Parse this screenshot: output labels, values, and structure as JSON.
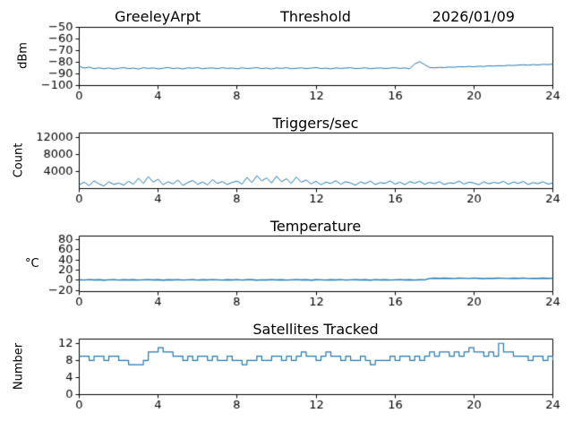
{
  "colors": {
    "line": "#1f77b4",
    "axes": "#000000",
    "background": "#ffffff"
  },
  "chart_data": [
    {
      "type": "line",
      "title_left": "GreeleyArpt",
      "title_center": "Threshold",
      "title_right": "2026/01/09",
      "xlabel": "",
      "ylabel": "dBm",
      "xlim": [
        0,
        24
      ],
      "ylim": [
        -100,
        -50
      ],
      "xticks": [
        0,
        4,
        8,
        12,
        16,
        20,
        24
      ],
      "yticks": [
        -100,
        -90,
        -80,
        -70,
        -60,
        -50
      ],
      "grid": false,
      "legend": false,
      "line_width": 1,
      "step": false,
      "x_start": 0,
      "x_step": 0.25,
      "values": [
        -83.5,
        -85.0,
        -84.2,
        -85.5,
        -84.8,
        -85.6,
        -84.9,
        -85.8,
        -85.2,
        -84.6,
        -85.5,
        -85.0,
        -85.9,
        -84.7,
        -85.3,
        -84.9,
        -85.7,
        -85.1,
        -84.5,
        -85.4,
        -85.0,
        -85.8,
        -84.8,
        -85.2,
        -84.6,
        -85.6,
        -85.1,
        -84.9,
        -85.5,
        -84.7,
        -85.3,
        -85.0,
        -85.7,
        -84.8,
        -85.4,
        -85.1,
        -84.6,
        -85.5,
        -85.0,
        -85.8,
        -84.9,
        -85.3,
        -84.7,
        -85.6,
        -85.2,
        -84.8,
        -85.5,
        -85.0,
        -84.6,
        -85.4,
        -85.1,
        -85.7,
        -84.9,
        -85.3,
        -85.0,
        -84.7,
        -85.5,
        -85.2,
        -84.8,
        -85.6,
        -85.1,
        -84.9,
        -85.4,
        -85.0,
        -84.7,
        -85.3,
        -84.9,
        -85.5,
        -81.5,
        -79.5,
        -82.0,
        -84.5,
        -84.8,
        -84.4,
        -84.6,
        -84.1,
        -84.3,
        -83.8,
        -84.0,
        -83.6,
        -83.9,
        -83.4,
        -83.6,
        -83.1,
        -83.3,
        -82.9,
        -83.1,
        -82.6,
        -82.8,
        -82.4,
        -82.2,
        -82.5,
        -82.0,
        -82.3,
        -81.8,
        -82.0,
        -81.6
      ]
    },
    {
      "type": "line",
      "title": "Triggers/sec",
      "xlabel": "",
      "ylabel": "Count",
      "xlim": [
        0,
        24
      ],
      "ylim": [
        0,
        13000
      ],
      "xticks": [
        0,
        4,
        8,
        12,
        16,
        20,
        24
      ],
      "yticks": [
        4000,
        8000,
        12000
      ],
      "grid": false,
      "legend": false,
      "line_width": 1,
      "step": false,
      "x_start": 0,
      "x_step": 0.25,
      "values": [
        900,
        1500,
        700,
        1800,
        1100,
        600,
        1600,
        950,
        1300,
        800,
        1700,
        1000,
        2400,
        1200,
        2800,
        1500,
        2200,
        900,
        1600,
        1100,
        2000,
        750,
        1400,
        1900,
        1000,
        1550,
        850,
        2100,
        1200,
        1650,
        950,
        1450,
        1750,
        1050,
        2600,
        1400,
        3000,
        1800,
        2500,
        1300,
        2900,
        1600,
        2300,
        1200,
        2700,
        1500,
        2000,
        1100,
        1700,
        900,
        1500,
        1200,
        1850,
        1000,
        1600,
        1300,
        800,
        1550,
        1150,
        1750,
        950,
        1400,
        1200,
        1800,
        1050,
        1500,
        900,
        1650,
        1250,
        1700,
        1000,
        1450,
        1150,
        1600,
        950,
        1350,
        1200,
        1750,
        1050,
        1500,
        1300,
        900,
        1600,
        1100,
        1450,
        1250,
        1700,
        1000,
        1550,
        1200,
        1650,
        950,
        1400,
        1150,
        1600,
        1050,
        1300
      ]
    },
    {
      "type": "line",
      "title": "Temperature",
      "xlabel": "",
      "ylabel": "°C",
      "xlim": [
        0,
        24
      ],
      "ylim": [
        -22,
        87
      ],
      "xticks": [
        0,
        4,
        8,
        12,
        16,
        20,
        24
      ],
      "yticks": [
        -20,
        0,
        20,
        40,
        60,
        80
      ],
      "grid": false,
      "legend": false,
      "line_width": 1.4,
      "step": false,
      "x_start": 0,
      "x_step": 0.25,
      "values": [
        1.2,
        0.6,
        1.5,
        0.8,
        1.3,
        0.5,
        1.1,
        1.6,
        0.7,
        1.2,
        0.9,
        1.4,
        0.6,
        1.0,
        1.5,
        0.8,
        1.2,
        0.5,
        1.3,
        0.9,
        1.6,
        0.7,
        1.1,
        1.4,
        0.6,
        1.2,
        0.8,
        1.5,
        1.0,
        0.6,
        1.3,
        0.9,
        1.6,
        0.7,
        1.2,
        1.4,
        0.5,
        1.1,
        0.8,
        1.5,
        0.9,
        1.3,
        0.6,
        1.0,
        1.6,
        0.8,
        1.2,
        0.5,
        1.4,
        1.0,
        0.7,
        1.3,
        0.9,
        1.5,
        0.6,
        1.1,
        1.4,
        0.8,
        1.2,
        0.5,
        1.6,
        0.9,
        1.3,
        0.7,
        1.0,
        1.5,
        0.8,
        1.2,
        0.6,
        1.4,
        1.0,
        3.8,
        4.3,
        3.9,
        4.5,
        4.0,
        3.7,
        4.4,
        4.1,
        3.8,
        4.6,
        4.0,
        3.6,
        4.2,
        3.9,
        4.5,
        4.1,
        3.7,
        4.3,
        4.0,
        4.6,
        3.8,
        4.2,
        3.9,
        4.4,
        4.0,
        4.2
      ]
    },
    {
      "type": "line",
      "title": "Satellites Tracked",
      "xlabel": "",
      "ylabel": "Number",
      "xlim": [
        0,
        24
      ],
      "ylim": [
        0,
        13
      ],
      "xticks": [
        0,
        4,
        8,
        12,
        16,
        20,
        24
      ],
      "yticks": [
        0,
        4,
        8,
        12
      ],
      "grid": false,
      "legend": false,
      "line_width": 1.2,
      "step": true,
      "x_start": 0,
      "x_step": 0.25,
      "values": [
        9,
        9,
        8,
        9,
        9,
        8,
        9,
        9,
        8,
        8,
        7,
        7,
        7,
        8,
        10,
        10,
        11,
        10,
        10,
        9,
        9,
        8,
        9,
        8,
        9,
        9,
        8,
        9,
        8,
        8,
        9,
        8,
        8,
        7,
        8,
        8,
        9,
        8,
        8,
        9,
        9,
        8,
        9,
        8,
        9,
        10,
        9,
        9,
        8,
        9,
        10,
        9,
        9,
        8,
        9,
        8,
        8,
        9,
        8,
        7,
        8,
        8,
        8,
        9,
        8,
        9,
        9,
        8,
        9,
        8,
        9,
        10,
        9,
        10,
        10,
        9,
        10,
        9,
        10,
        11,
        10,
        10,
        9,
        10,
        9,
        12,
        10,
        10,
        9,
        9,
        9,
        8,
        9,
        9,
        8,
        9,
        8
      ]
    }
  ]
}
